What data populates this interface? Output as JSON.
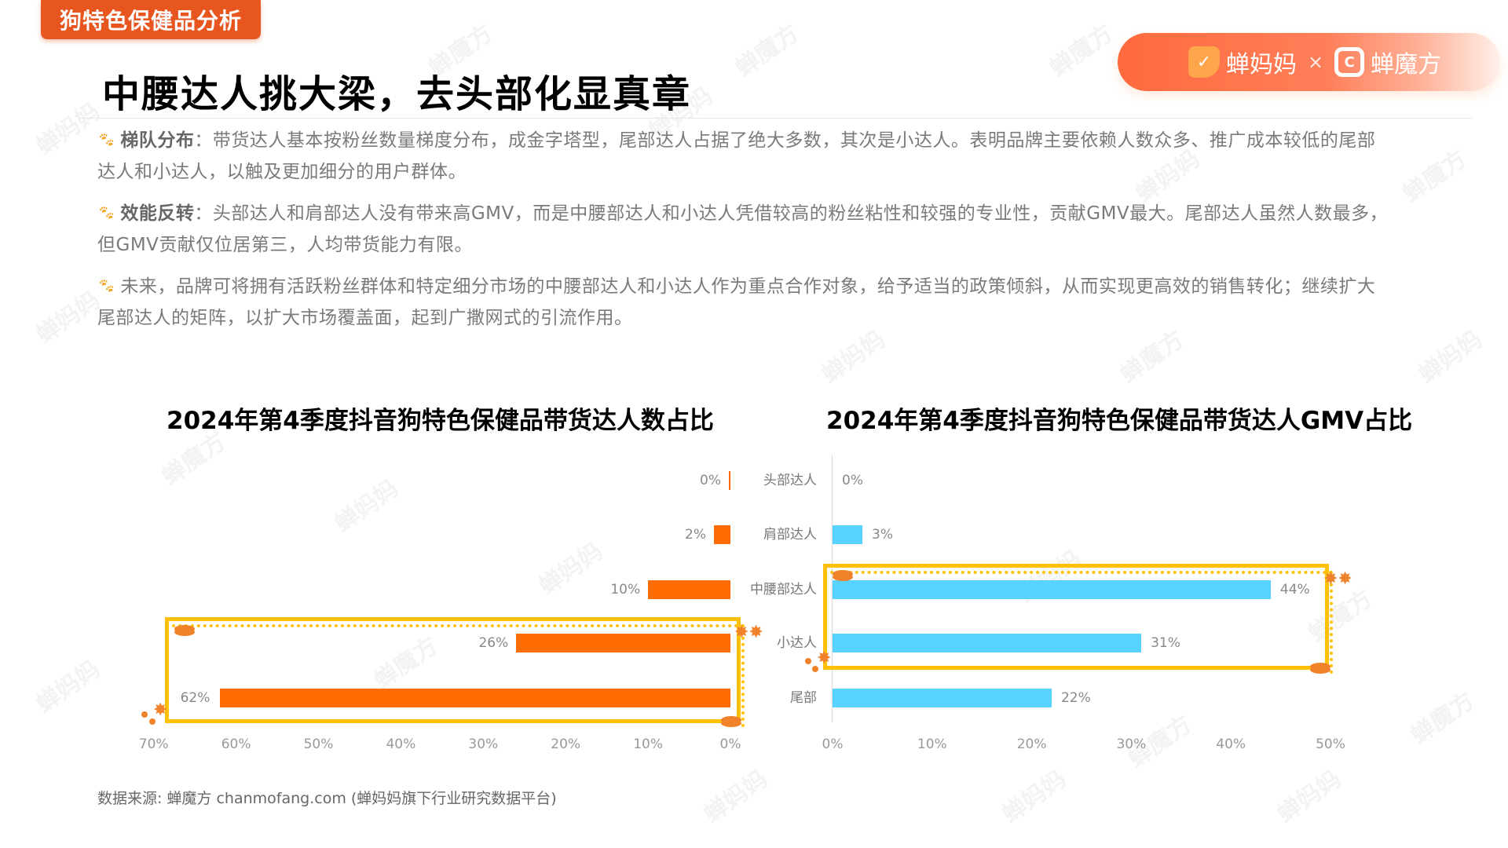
{
  "header": {
    "section_tag": "狗特色保健品分析",
    "page_title": "中腰达人挑大梁，去头部化显真章",
    "logo": {
      "brand1": "蝉妈妈",
      "separator": "×",
      "brand2": "蝉魔方"
    }
  },
  "paragraphs": [
    {
      "icon": "paw-icon",
      "lead": "梯队分布",
      "colon": "：",
      "text": "带货达人基本按粉丝数量梯度分布，成金字塔型，尾部达人占据了绝大多数，其次是小达人。表明品牌主要依赖人数众多、推广成本较低的尾部达人和小达人，以触及更加细分的用户群体。"
    },
    {
      "icon": "paw-icon",
      "lead": "效能反转",
      "colon": "：",
      "text": "头部达人和肩部达人没有带来高GMV，而是中腰部达人和小达人凭借较高的粉丝粘性和较强的专业性，贡献GMV最大。尾部达人虽然人数最多，但GMV贡献仅位居第三，人均带货能力有限。"
    },
    {
      "icon": "paw-icon",
      "lead": "",
      "colon": "",
      "text": "未来，品牌可将拥有活跃粉丝群体和特定细分市场的中腰部达人和小达人作为重点合作对象，给予适当的政策倾斜，从而实现更高效的销售转化；继续扩大尾部达人的矩阵，以扩大市场覆盖面，起到广撒网式的引流作用。"
    }
  ],
  "source": "数据来源: 蝉魔方 chanmofang.com (蝉妈妈旗下行业研究数据平台)",
  "colors": {
    "tag": "#E8561F",
    "left_bar": "#FF6D00",
    "right_bar": "#57D3FF",
    "highlight_frame": "#FFC107",
    "paw": "#F5A623"
  },
  "chart_data": [
    {
      "type": "bar",
      "orientation": "horizontal",
      "direction": "right-to-left",
      "title": "2024年第4季度抖音狗特色保健品带货达人数占比",
      "categories": [
        "头部达人",
        "肩部达人",
        "中腰部达人",
        "小达人",
        "尾部"
      ],
      "values": [
        0,
        2,
        10,
        26,
        62
      ],
      "value_labels": [
        "0%",
        "2%",
        "10%",
        "26%",
        "62%"
      ],
      "xlabel": "",
      "ylabel": "",
      "xlim": [
        0,
        70
      ],
      "xticks": [
        "70%",
        "60%",
        "50%",
        "40%",
        "30%",
        "20%",
        "10%",
        "0%"
      ],
      "grid": false,
      "color": "#FF6D00",
      "highlighted_categories": [
        "小达人",
        "尾部"
      ]
    },
    {
      "type": "bar",
      "orientation": "horizontal",
      "direction": "left-to-right",
      "title": "2024年第4季度抖音狗特色保健品带货达人GMV占比",
      "categories": [
        "头部达人",
        "肩部达人",
        "中腰部达人",
        "小达人",
        "尾部"
      ],
      "values": [
        0,
        3,
        44,
        31,
        22
      ],
      "value_labels": [
        "0%",
        "3%",
        "44%",
        "31%",
        "22%"
      ],
      "xlabel": "",
      "ylabel": "",
      "xlim": [
        0,
        50
      ],
      "xticks": [
        "0%",
        "10%",
        "20%",
        "30%",
        "40%",
        "50%"
      ],
      "grid": false,
      "color": "#57D3FF",
      "highlighted_categories": [
        "中腰部达人",
        "小达人"
      ]
    }
  ]
}
